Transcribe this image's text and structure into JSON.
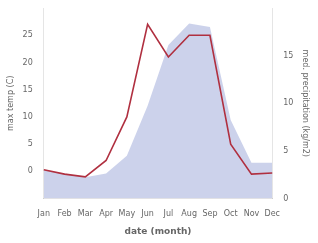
{
  "chart_data": {
    "type": "line",
    "categories": [
      "Jan",
      "Feb",
      "Mar",
      "Apr",
      "May",
      "Jun",
      "Jul",
      "Aug",
      "Sep",
      "Oct",
      "Nov",
      "Dec"
    ],
    "xlabel": "date (month)",
    "ylabel": "max temp (C)",
    "y2label": "med. precipitation (kg/m2)",
    "ylim": [
      -5,
      30
    ],
    "yticks": [
      0,
      5,
      10,
      15,
      20,
      25
    ],
    "y2lim": [
      0,
      20
    ],
    "y2ticks": [
      0,
      5,
      10,
      15
    ],
    "grid": false,
    "series": [
      {
        "type": "line",
        "color": "#b03040",
        "values": [
          0.3,
          -0.5,
          -1.0,
          2.0,
          10.0,
          27.0,
          21.0,
          25.0,
          25.0,
          5.0,
          -0.5,
          -0.3
        ]
      },
      {
        "type": "area",
        "color": "#aab4dd",
        "axis": "y2",
        "values": [
          3.0,
          2.625,
          2.25,
          2.625,
          4.5,
          9.75,
          16.125,
          18.375,
          18.0,
          8.25,
          3.75,
          3.75
        ]
      }
    ]
  }
}
